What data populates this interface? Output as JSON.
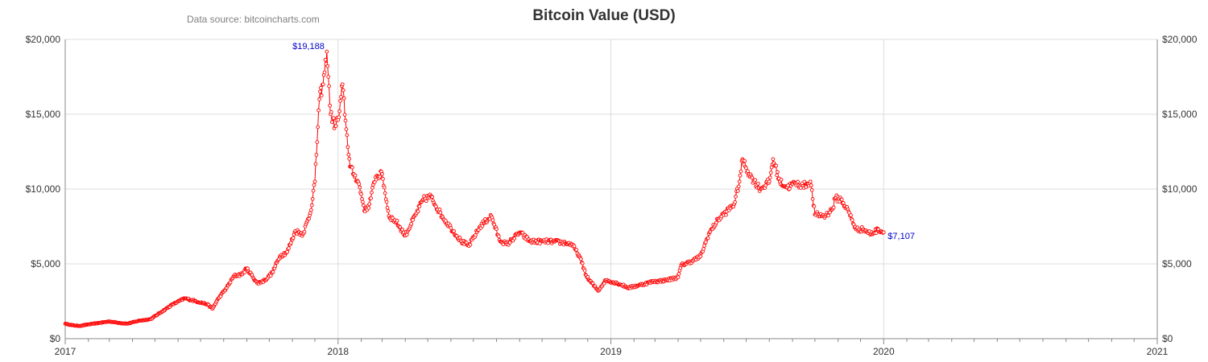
{
  "chart_data": {
    "type": "line",
    "title": "Bitcoin Value (USD)",
    "source_note": "Data source: bitcoincharts.com",
    "xlabel": "",
    "ylabel": "",
    "x_ticks": [
      "2017",
      "2018",
      "2019",
      "2020",
      "2021"
    ],
    "xlim": [
      "2017-01-01",
      "2021-01-01"
    ],
    "y_ticks": [
      "$0",
      "$5,000",
      "$10,000",
      "$15,000",
      "$20,000"
    ],
    "ylim": [
      0,
      20000
    ],
    "grid": true,
    "secondary_y_axis": "right, mirrors left",
    "marker": "hollow circle",
    "colors": {
      "series": "#ff0000",
      "annotation": "#0000cc"
    },
    "series": [
      {
        "x": [
          "2017-01-01",
          "2017-01-10",
          "2017-01-20",
          "2017-02-01",
          "2017-02-15",
          "2017-03-01",
          "2017-03-15",
          "2017-03-25",
          "2017-04-10",
          "2017-04-25",
          "2017-05-10",
          "2017-05-25",
          "2017-06-10",
          "2017-06-25",
          "2017-07-10",
          "2017-07-17",
          "2017-07-25",
          "2017-08-05",
          "2017-08-15",
          "2017-08-25",
          "2017-09-01",
          "2017-09-15",
          "2017-09-25",
          "2017-10-05",
          "2017-10-15",
          "2017-10-25",
          "2017-11-05",
          "2017-11-15",
          "2017-11-25",
          "2017-12-01",
          "2017-12-07",
          "2017-12-12",
          "2017-12-17",
          "2017-12-22",
          "2017-12-28",
          "2018-01-02",
          "2018-01-07",
          "2018-01-12",
          "2018-01-17",
          "2018-01-22",
          "2018-01-28",
          "2018-02-06",
          "2018-02-12",
          "2018-02-20",
          "2018-03-01",
          "2018-03-10",
          "2018-03-20",
          "2018-04-01",
          "2018-04-15",
          "2018-04-25",
          "2018-05-05",
          "2018-05-20",
          "2018-06-01",
          "2018-06-15",
          "2018-06-25",
          "2018-07-10",
          "2018-07-25",
          "2018-08-05",
          "2018-08-15",
          "2018-09-01",
          "2018-09-15",
          "2018-10-01",
          "2018-10-15",
          "2018-11-01",
          "2018-11-10",
          "2018-11-20",
          "2018-11-30",
          "2018-12-10",
          "2018-12-15",
          "2018-12-25",
          "2019-01-10",
          "2019-01-25",
          "2019-02-10",
          "2019-02-25",
          "2019-03-15",
          "2019-04-01",
          "2019-04-05",
          "2019-04-20",
          "2019-05-01",
          "2019-05-12",
          "2019-05-25",
          "2019-06-05",
          "2019-06-15",
          "2019-06-22",
          "2019-06-26",
          "2019-07-05",
          "2019-07-12",
          "2019-07-20",
          "2019-08-01",
          "2019-08-06",
          "2019-08-15",
          "2019-08-25",
          "2019-09-05",
          "2019-09-15",
          "2019-09-25",
          "2019-10-01",
          "2019-10-15",
          "2019-10-25",
          "2019-10-28",
          "2019-11-05",
          "2019-11-15",
          "2019-11-25",
          "2019-12-05",
          "2019-12-15",
          "2019-12-25",
          "2020-01-01"
        ],
        "values": [
          1000,
          900,
          850,
          950,
          1050,
          1150,
          1050,
          1000,
          1200,
          1300,
          1800,
          2300,
          2700,
          2500,
          2300,
          2000,
          2700,
          3400,
          4200,
          4300,
          4700,
          3700,
          3900,
          4400,
          5500,
          5800,
          7200,
          7000,
          8400,
          10500,
          16000,
          17000,
          19188,
          15000,
          14200,
          14800,
          17000,
          14000,
          11500,
          11000,
          10500,
          8500,
          9000,
          10800,
          11000,
          8200,
          7800,
          6900,
          8300,
          9300,
          9500,
          8200,
          7400,
          6500,
          6200,
          7500,
          8200,
          6600,
          6300,
          7100,
          6500,
          6500,
          6500,
          6400,
          6300,
          5500,
          4100,
          3500,
          3200,
          3900,
          3700,
          3400,
          3600,
          3800,
          3900,
          4100,
          4900,
          5200,
          5500,
          7000,
          8000,
          8500,
          9000,
          10500,
          12000,
          11000,
          10500,
          10000,
          10500,
          12000,
          10500,
          10100,
          10400,
          10200,
          10500,
          8300,
          8200,
          8700,
          9400,
          9300,
          8500,
          7300,
          7300,
          7000,
          7300,
          7107
        ]
      }
    ],
    "annotations": [
      {
        "x": "2017-12-17",
        "value": 19188,
        "text": "$19,188"
      },
      {
        "x": "2020-01-01",
        "value": 7107,
        "text": "$7,107"
      }
    ]
  }
}
